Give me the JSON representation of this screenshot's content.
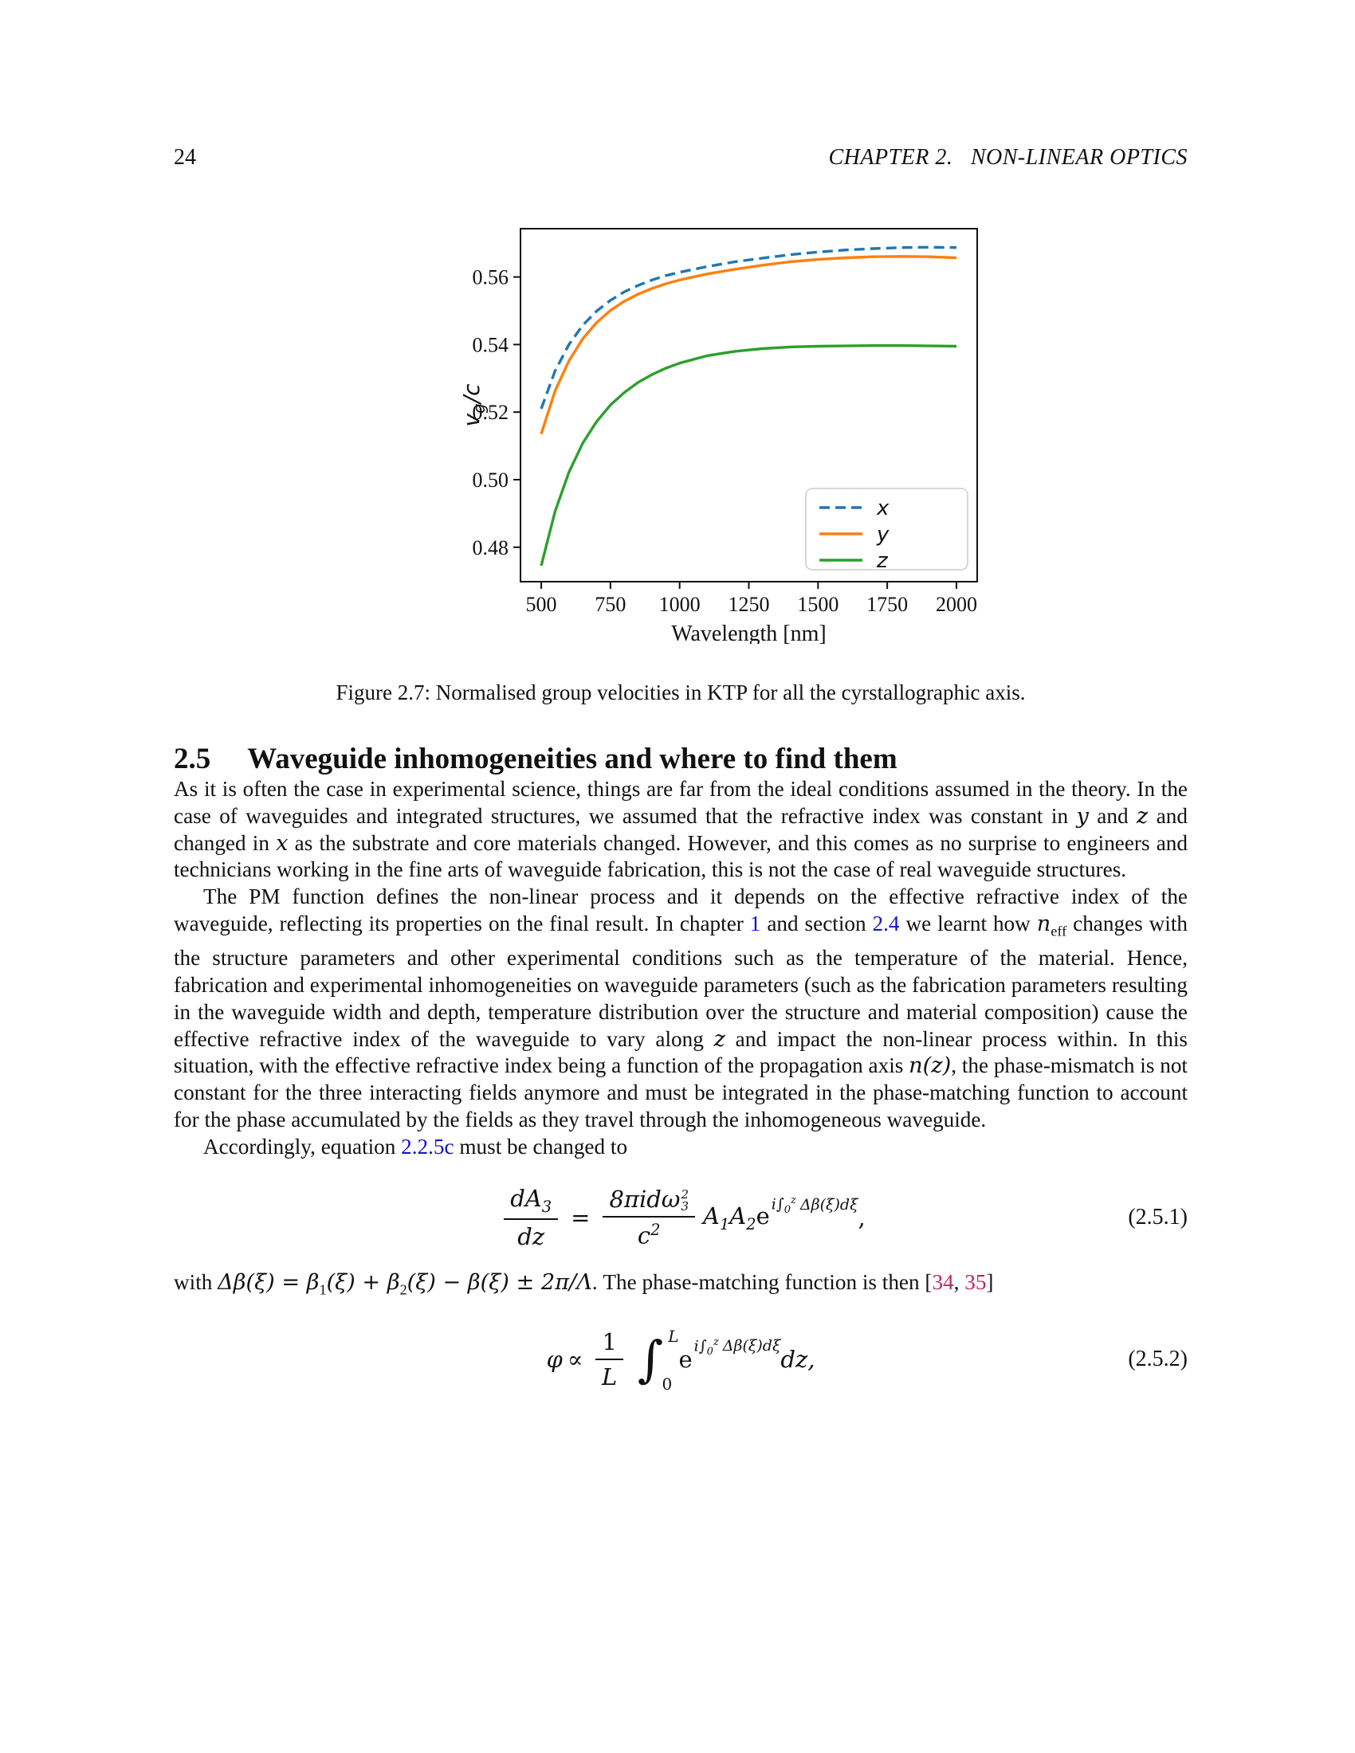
{
  "page": {
    "number": "24",
    "chapter_header": "CHAPTER 2.   NON-LINEAR OPTICS"
  },
  "figure_caption": "Figure 2.7: Normalised group velocities in KTP for all the cyrstallographic axis.",
  "chart_data": {
    "type": "line",
    "title": "",
    "xlabel": "Wavelength [nm]",
    "ylabel": "vg/c",
    "ylabel_parts": [
      "v",
      "g",
      "/c"
    ],
    "xlim": [
      425,
      2075
    ],
    "ylim": [
      0.4698,
      0.5743
    ],
    "xticks": [
      500,
      750,
      1000,
      1250,
      1500,
      1750,
      2000
    ],
    "yticks": [
      0.48,
      0.5,
      0.52,
      0.54,
      0.56
    ],
    "grid": false,
    "legend_position": "lower right",
    "x": [
      500,
      550,
      600,
      650,
      700,
      750,
      800,
      850,
      900,
      950,
      1000,
      1100,
      1200,
      1300,
      1400,
      1500,
      1600,
      1700,
      1800,
      1900,
      2000
    ],
    "series": [
      {
        "name": "x",
        "color": "#1f77b4",
        "dash": "dashed",
        "values": [
          0.521,
          0.5322,
          0.54,
          0.5457,
          0.5499,
          0.5531,
          0.5556,
          0.5575,
          0.5591,
          0.5604,
          0.5614,
          0.5631,
          0.5645,
          0.5656,
          0.5666,
          0.5674,
          0.568,
          0.5684,
          0.5687,
          0.5688,
          0.5687
        ]
      },
      {
        "name": "y",
        "color": "#ff7f0e",
        "dash": "solid",
        "values": [
          0.5135,
          0.5263,
          0.5352,
          0.5417,
          0.5465,
          0.5501,
          0.5528,
          0.5549,
          0.5566,
          0.558,
          0.5591,
          0.5609,
          0.5623,
          0.5635,
          0.5645,
          0.5652,
          0.5657,
          0.566,
          0.5661,
          0.566,
          0.5657
        ]
      },
      {
        "name": "z",
        "color": "#2ca02c",
        "dash": "solid",
        "values": [
          0.4745,
          0.4906,
          0.5022,
          0.5108,
          0.5172,
          0.5221,
          0.5258,
          0.5288,
          0.5311,
          0.533,
          0.5345,
          0.5367,
          0.538,
          0.5388,
          0.5393,
          0.5395,
          0.5396,
          0.5397,
          0.5397,
          0.5396,
          0.5395
        ]
      }
    ]
  },
  "section": {
    "number": "2.5",
    "title": "Waveguide inhomogeneities and where to find them"
  },
  "paragraphs": {
    "p1": [
      {
        "t": "As it is often the case in experimental science, things are far from the ideal conditions assumed in the theory. In the case of waveguides and integrated structures, we assumed that the refractive index was constant in "
      },
      {
        "t": "y",
        "s": "math"
      },
      {
        "t": " and "
      },
      {
        "t": "z",
        "s": "math"
      },
      {
        "t": " and changed in "
      },
      {
        "t": "x",
        "s": "math"
      },
      {
        "t": " as the substrate and core materials changed. However, and this comes as no surprise to engineers and technicians working in the fine arts of waveguide fabrication, this is not the case of real waveguide structures."
      }
    ],
    "p2": [
      {
        "t": "The PM function defines the non-linear process and it depends on the effective refractive index of the waveguide, reflecting its properties on the final result. In chapter "
      },
      {
        "t": "1",
        "s": "link"
      },
      {
        "t": " and section "
      },
      {
        "t": "2.4",
        "s": "link"
      },
      {
        "t": " we learnt how "
      },
      {
        "t": "n",
        "s": "math"
      },
      {
        "t": "eff",
        "s": "sub"
      },
      {
        "t": " changes with the structure parameters and other experimental conditions such as the temperature of the material. Hence, fabrication and experimental inhomogeneities on waveguide parameters (such as the fabrication parameters resulting in the waveguide width and depth, temperature distribution over the structure and material composition) cause the effective refractive index of the waveguide to vary along "
      },
      {
        "t": "z",
        "s": "math"
      },
      {
        "t": " and impact the non-linear process within. In this situation, with the effective refractive index being a function of the propagation axis "
      },
      {
        "t": "n(z)",
        "s": "math"
      },
      {
        "t": ", the phase-mismatch is not constant for the three interacting fields anymore and must be integrated in the phase-matching function to account for the phase accumulated by the fields as they travel through the inhomogeneous waveguide."
      }
    ],
    "p3": [
      {
        "t": "Accordingly, equation "
      },
      {
        "t": "2.2.5c",
        "s": "link"
      },
      {
        "t": " must be changed to"
      }
    ],
    "p4": [
      {
        "t": "with "
      },
      {
        "t": "Δβ(ξ) = β",
        "s": "math"
      },
      {
        "t": "1",
        "s": "sub"
      },
      {
        "t": "(ξ) + β",
        "s": "math"
      },
      {
        "t": "2",
        "s": "sub"
      },
      {
        "t": "(ξ) − β(ξ) ± 2π/Λ",
        "s": "math"
      },
      {
        "t": ". The phase-matching function is then ["
      },
      {
        "t": "34",
        "s": "cite"
      },
      {
        "t": ", "
      },
      {
        "t": "35",
        "s": "cite"
      },
      {
        "t": "]"
      }
    ]
  },
  "equations": {
    "eq1": {
      "f1n_base": "dA",
      "f1n_sub": "3",
      "f1d": "dz",
      "equals": "=",
      "f2n_base": "8πidω",
      "f2n_sup": "2",
      "f2n_sub": "3",
      "f2d_base": "c",
      "f2d_sup": "2",
      "a1": "A",
      "a1s": "1",
      "a2": "A",
      "a2s": "2",
      "e": "e",
      "exp_i": "i",
      "exp_int": "∫",
      "exp_int_sub": "0",
      "exp_int_sup": "z",
      "exp_rest": "Δβ(ξ)dξ",
      "trail": ",",
      "tag": "(2.5.1)"
    },
    "eq2": {
      "phi": "φ",
      "propto": "∝",
      "fn": "1",
      "fd": "L",
      "int": "∫",
      "int_sup": "L",
      "int_sub": "0",
      "e": "e",
      "exp_i": "i",
      "exp_int": "∫",
      "exp_int_sub": "0",
      "exp_int_sup": "z",
      "exp_rest": "Δβ(ξ)dξ",
      "trail": "dz,",
      "tag": "(2.5.2)"
    }
  },
  "colors": {
    "link": "#1414cc",
    "cite": "#c52360",
    "axis": "#111111",
    "legend_border": "#cccccc"
  }
}
